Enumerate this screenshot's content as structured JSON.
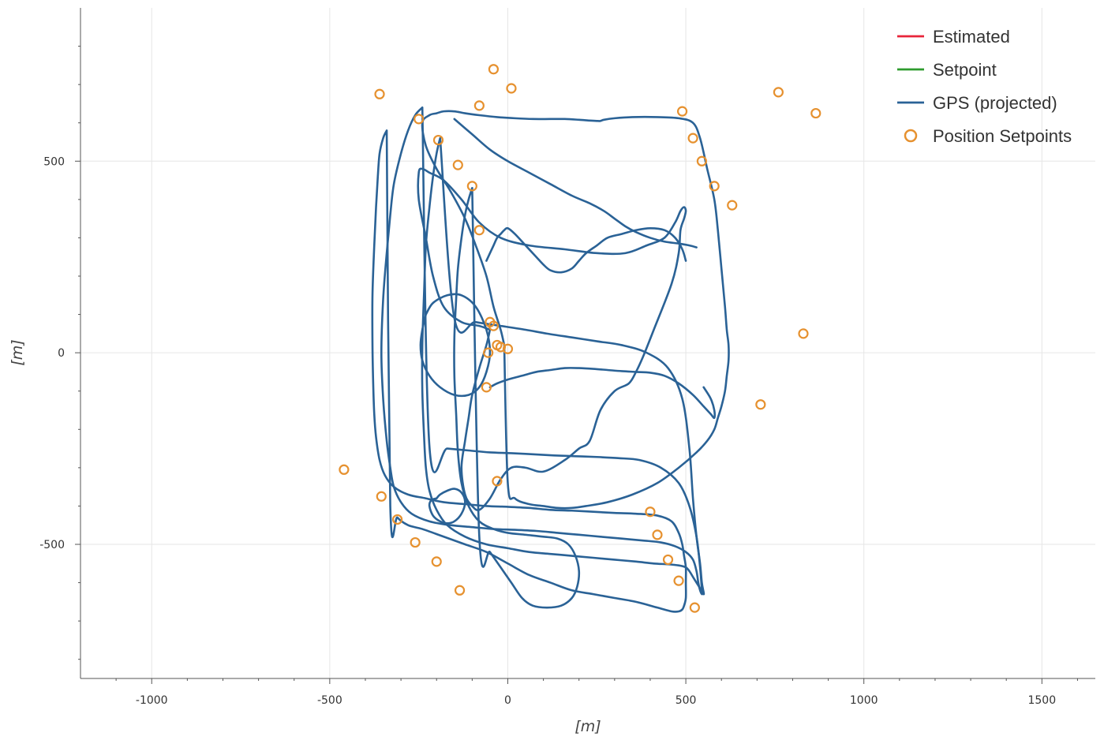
{
  "chart_data": {
    "type": "line",
    "title": "",
    "xlabel": "[m]",
    "ylabel": "[m]",
    "xlim": [
      -1200,
      1650
    ],
    "ylim": [
      -850,
      900
    ],
    "grid": true,
    "legend_placement": "top-right",
    "x_ticks": [
      -1000,
      -500,
      0,
      500,
      1000,
      1500
    ],
    "x_tick_labels": [
      "-1000",
      "-500",
      "0",
      "500",
      "1000",
      "1500"
    ],
    "y_ticks": [
      -500,
      0,
      500
    ],
    "y_tick_labels": [
      "-500",
      "0",
      "500"
    ],
    "legend": [
      {
        "label": "Estimated",
        "color": "#e8253a",
        "kind": "line"
      },
      {
        "label": "Setpoint",
        "color": "#2e9b2e",
        "kind": "line"
      },
      {
        "label": "GPS (projected)",
        "color": "#2a6296",
        "kind": "line"
      },
      {
        "label": "Position Setpoints",
        "color": "#e6912f",
        "kind": "circle"
      }
    ],
    "series": [
      {
        "name": "GPS (projected)",
        "color": "#2a6296",
        "segments": [
          {
            "x": [
              -50,
              -60,
              -80,
              -100,
              -110,
              -120,
              -130,
              -120,
              -100,
              -80,
              -50,
              -20,
              10,
              50,
              100,
              160,
              200,
              230,
              260,
              300,
              340,
              360,
              380,
              410,
              460,
              480,
              485,
              495,
              500,
              495,
              485,
              470,
              440,
              390,
              330,
              250,
              160,
              60,
              -20,
              -80,
              -130,
              -180,
              -220,
              -240,
              -250,
              -250,
              -230,
              -210,
              -180,
              -130,
              -80,
              -50
            ],
            "y": [
              60,
              20,
              -40,
              -110,
              -170,
              -230,
              -300,
              -370,
              -400,
              -410,
              -380,
              -330,
              -300,
              -300,
              -310,
              -280,
              -250,
              -230,
              -150,
              -100,
              -80,
              -50,
              -10,
              60,
              180,
              260,
              320,
              350,
              370,
              380,
              370,
              340,
              300,
              280,
              260,
              260,
              270,
              280,
              300,
              340,
              400,
              450,
              470,
              480,
              470,
              400,
              300,
              200,
              120,
              80,
              70,
              60
            ]
          },
          {
            "x": [
              -10,
              -20,
              -40,
              -60,
              -90,
              -120,
              -160,
              -200,
              -230,
              -240,
              -220,
              -200,
              -180,
              -150,
              -120,
              -80,
              -30,
              20,
              70,
              120,
              160,
              200,
              230,
              250,
              260,
              270,
              300,
              350,
              420,
              480,
              520,
              540,
              560,
              580,
              590,
              600,
              610,
              615,
              620,
              620,
              615,
              610,
              600,
              590,
              580,
              560,
              530,
              480,
              420,
              350,
              280,
              220,
              180,
              140,
              100,
              60,
              20,
              0,
              -10
            ],
            "y": [
              20,
              60,
              120,
              200,
              280,
              350,
              420,
              480,
              540,
              600,
              620,
              625,
              630,
              630,
              625,
              620,
              615,
              612,
              610,
              610,
              610,
              608,
              606,
              605,
              605,
              608,
              612,
              615,
              615,
              612,
              600,
              560,
              480,
              400,
              320,
              220,
              120,
              60,
              20,
              -20,
              -60,
              -100,
              -140,
              -170,
              -200,
              -230,
              -260,
              -300,
              -340,
              -370,
              -390,
              -400,
              -405,
              -405,
              -400,
              -395,
              -380,
              -340,
              20
            ]
          },
          {
            "x": [
              -340,
              -350,
              -360,
              -365,
              -370,
              -375,
              -380,
              -380,
              -378,
              -375,
              -370,
              -360,
              -345,
              -320,
              -280,
              -230,
              -180,
              -120,
              -60,
              0,
              60,
              120,
              180,
              240,
              300,
              360,
              420,
              460,
              480,
              490,
              495,
              500,
              500,
              500,
              495,
              490,
              480,
              460,
              420,
              360,
              300,
              240,
              180,
              120,
              60,
              0,
              -60,
              -120,
              -180,
              -240,
              -280,
              -310,
              -330,
              -340
            ],
            "y": [
              580,
              560,
              520,
              460,
              380,
              280,
              150,
              20,
              -80,
              -160,
              -220,
              -280,
              -320,
              -350,
              -370,
              -380,
              -390,
              -395,
              -400,
              -402,
              -405,
              -410,
              -412,
              -415,
              -418,
              -420,
              -425,
              -440,
              -470,
              -500,
              -530,
              -560,
              -600,
              -640,
              -660,
              -670,
              -675,
              -675,
              -665,
              -650,
              -640,
              -630,
              -620,
              -600,
              -580,
              -550,
              -520,
              -500,
              -480,
              -460,
              -450,
              -430,
              -400,
              580
            ]
          },
          {
            "x": [
              -240,
              -260,
              -280,
              -300,
              -320,
              -330,
              -340,
              -350,
              -355,
              -350,
              -340,
              -330,
              -320,
              -300,
              -270,
              -220,
              -160,
              -100,
              -40,
              20,
              80,
              140,
              200,
              260,
              320,
              380,
              430,
              470,
              500,
              520,
              530,
              535,
              540,
              545,
              545,
              540,
              530,
              510,
              480,
              430,
              370,
              310,
              250,
              190,
              130,
              70,
              10,
              -50,
              -110,
              -170,
              -220,
              -240
            ],
            "y": [
              640,
              620,
              580,
              520,
              440,
              360,
              260,
              140,
              0,
              -120,
              -230,
              -300,
              -350,
              -390,
              -420,
              -440,
              -450,
              -455,
              -460,
              -462,
              -465,
              -470,
              -475,
              -480,
              -485,
              -490,
              -495,
              -505,
              -520,
              -540,
              -570,
              -600,
              -620,
              -630,
              -620,
              -560,
              -480,
              -400,
              -340,
              -300,
              -280,
              -275,
              -272,
              -270,
              -268,
              -265,
              -262,
              -260,
              -255,
              -250,
              -245,
              640
            ]
          },
          {
            "x": [
              -190,
              -200,
              -210,
              -220,
              -230,
              -235,
              -240,
              -240,
              -235,
              -230,
              -220,
              -200,
              -170,
              -120,
              -60,
              0,
              60,
              120,
              180,
              240,
              300,
              360,
              410,
              450,
              480,
              500,
              510,
              520,
              530,
              540,
              545,
              550,
              550,
              545,
              540,
              530,
              520,
              510,
              490,
              450,
              390,
              320,
              250,
              180,
              110,
              50,
              -20,
              -90,
              -150,
              -190
            ],
            "y": [
              560,
              520,
              460,
              380,
              280,
              160,
              20,
              -100,
              -220,
              -300,
              -360,
              -410,
              -450,
              -480,
              -500,
              -510,
              -520,
              -525,
              -530,
              -535,
              -540,
              -545,
              -550,
              -552,
              -555,
              -560,
              -570,
              -585,
              -600,
              -615,
              -625,
              -630,
              -625,
              -600,
              -550,
              -480,
              -380,
              -250,
              -120,
              -40,
              0,
              20,
              30,
              40,
              50,
              60,
              70,
              80,
              90,
              560
            ]
          },
          {
            "x": [
              -100,
              -110,
              -120,
              -130,
              -140,
              -145,
              -150,
              -150,
              -145,
              -140,
              -130,
              -110,
              -80,
              -40,
              0,
              50,
              100,
              140,
              170,
              190,
              200,
              195,
              180,
              150,
              110,
              70,
              40,
              10,
              -20,
              -50,
              -80,
              -100
            ],
            "y": [
              430,
              400,
              360,
              300,
              220,
              140,
              40,
              -60,
              -160,
              -260,
              -340,
              -400,
              -440,
              -460,
              -470,
              -475,
              -480,
              -485,
              -500,
              -530,
              -570,
              -610,
              -640,
              -660,
              -665,
              -660,
              -640,
              -600,
              -560,
              -520,
              -480,
              430
            ]
          },
          {
            "x": [
              -230,
              -240,
              -245,
              -240,
              -220,
              -190,
              -150,
              -110,
              -80,
              -60,
              -50,
              -60,
              -90,
              -130,
              -170,
              -210,
              -230
            ],
            "y": [
              100,
              60,
              20,
              -20,
              -60,
              -90,
              -110,
              -110,
              -90,
              -50,
              0,
              60,
              120,
              150,
              150,
              130,
              100
            ]
          },
          {
            "x": [
              -200,
              -190,
              -170,
              -150,
              -130,
              -120,
              -130,
              -150,
              -170,
              -190,
              -210,
              -220,
              -215,
              -200
            ],
            "y": [
              -380,
              -370,
              -360,
              -355,
              -365,
              -390,
              -420,
              -440,
              -445,
              -440,
              -425,
              -400,
              -385,
              -380
            ]
          },
          {
            "x": [
              -150,
              -100,
              -50,
              0,
              60,
              120,
              180,
              230,
              270,
              300,
              330,
              360,
              400,
              440,
              480,
              510,
              530
            ],
            "y": [
              610,
              570,
              530,
              500,
              470,
              440,
              410,
              390,
              370,
              350,
              330,
              315,
              300,
              290,
              285,
              280,
              275
            ]
          },
          {
            "x": [
              -60,
              -50,
              -40,
              -30,
              -20,
              -10,
              0,
              20,
              50,
              80,
              100,
              120,
              150,
              180,
              200,
              220,
              250,
              280,
              320,
              360,
              400,
              440,
              470,
              490,
              500
            ],
            "y": [
              240,
              260,
              280,
              300,
              310,
              320,
              325,
              310,
              280,
              250,
              230,
              215,
              210,
              220,
              240,
              260,
              280,
              300,
              310,
              320,
              325,
              320,
              300,
              270,
              240
            ]
          },
          {
            "x": [
              -50,
              -30,
              0,
              40,
              80,
              120,
              160,
              200,
              240,
              280,
              320,
              360,
              400,
              440,
              480,
              520,
              550,
              570,
              580,
              580,
              570,
              550
            ],
            "y": [
              -90,
              -80,
              -70,
              -60,
              -50,
              -45,
              -40,
              -40,
              -42,
              -45,
              -48,
              -50,
              -52,
              -60,
              -80,
              -110,
              -140,
              -160,
              -170,
              -150,
              -120,
              -90
            ]
          }
        ]
      },
      {
        "name": "Position Setpoints",
        "color": "#e6912f",
        "type": "scatter",
        "x": [
          -40,
          10,
          -360,
          -80,
          -250,
          -195,
          -140,
          -100,
          -80,
          490,
          520,
          545,
          580,
          630,
          760,
          865,
          -50,
          -40,
          -30,
          -20,
          0,
          -55,
          -60,
          830,
          710,
          -460,
          -355,
          -310,
          -260,
          -200,
          -135,
          -30,
          400,
          420,
          450,
          480,
          525
        ],
        "y": [
          740,
          690,
          675,
          645,
          610,
          555,
          490,
          435,
          320,
          630,
          560,
          500,
          435,
          385,
          680,
          625,
          80,
          70,
          20,
          15,
          10,
          0,
          -90,
          50,
          -135,
          -305,
          -375,
          -435,
          -495,
          -545,
          -620,
          -335,
          -415,
          -475,
          -540,
          -595,
          -665
        ]
      }
    ]
  }
}
